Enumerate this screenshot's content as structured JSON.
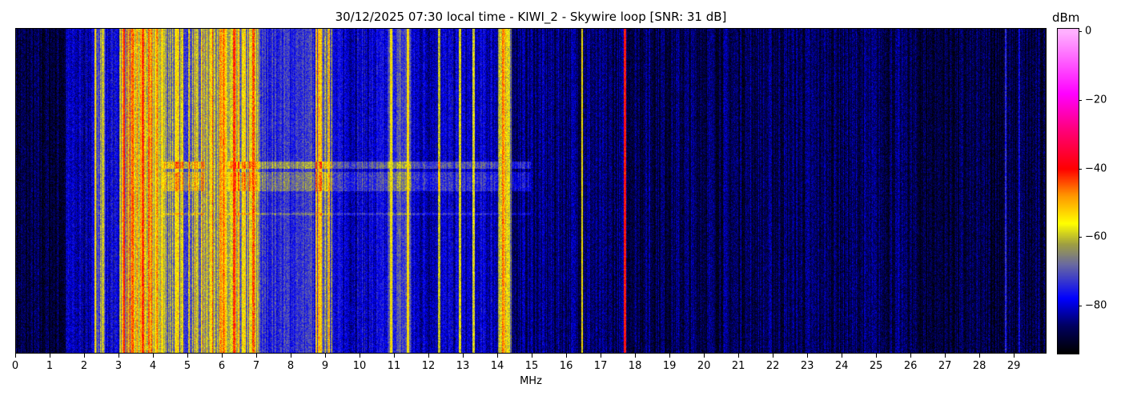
{
  "chart_data": {
    "type": "heatmap",
    "title": "30/12/2025 07:30 local time - KIWI_2 - Skywire loop [SNR: 31 dB]",
    "xlabel": "MHz",
    "ylabel": "",
    "xlim": [
      0,
      29.95
    ],
    "xticks": [
      "0",
      "1",
      "2",
      "3",
      "4",
      "5",
      "6",
      "7",
      "8",
      "9",
      "10",
      "11",
      "12",
      "13",
      "14",
      "15",
      "16",
      "17",
      "18",
      "19",
      "20",
      "21",
      "22",
      "23",
      "24",
      "25",
      "26",
      "27",
      "28",
      "29"
    ],
    "colorbar": {
      "label": "dBm",
      "range": [
        -94,
        1
      ],
      "ticks": [
        "0",
        "−20",
        "−40",
        "−60",
        "−80"
      ],
      "tick_values": [
        0,
        -20,
        -40,
        -60,
        -80
      ]
    },
    "colormap": [
      {
        "v": -94,
        "color": "#000000"
      },
      {
        "v": -86,
        "color": "#000060"
      },
      {
        "v": -78,
        "color": "#0000ff"
      },
      {
        "v": -68,
        "color": "#6a6aa0"
      },
      {
        "v": -62,
        "color": "#a0a040"
      },
      {
        "v": -56,
        "color": "#ffff00"
      },
      {
        "v": -48,
        "color": "#ff9900"
      },
      {
        "v": -40,
        "color": "#ff0000"
      },
      {
        "v": -28,
        "color": "#ff0080"
      },
      {
        "v": -18,
        "color": "#ff00ff"
      },
      {
        "v": 0,
        "color": "#ffb0ff"
      }
    ],
    "background_dbm": -89,
    "bands": [
      {
        "f": [
          1.45,
          2.3
        ],
        "dbm": -82
      },
      {
        "f": [
          2.3,
          2.6
        ],
        "dbm": -62
      },
      {
        "f": [
          2.6,
          3.0
        ],
        "dbm": -79
      },
      {
        "f": [
          3.0,
          4.3
        ],
        "dbm": -56
      },
      {
        "f": [
          4.3,
          5.5
        ],
        "dbm": -63
      },
      {
        "f": [
          5.5,
          6.15
        ],
        "dbm": -56
      },
      {
        "f": [
          6.15,
          7.1
        ],
        "dbm": -62
      },
      {
        "f": [
          7.1,
          8.7
        ],
        "dbm": -74
      },
      {
        "f": [
          8.7,
          9.2
        ],
        "dbm": -62
      },
      {
        "f": [
          9.2,
          10.8
        ],
        "dbm": -80
      },
      {
        "f": [
          10.8,
          11.5
        ],
        "dbm": -72
      },
      {
        "f": [
          11.5,
          14.0
        ],
        "dbm": -81
      },
      {
        "f": [
          14.0,
          14.4
        ],
        "dbm": -60
      },
      {
        "f": [
          14.4,
          16.8
        ],
        "dbm": -85
      },
      {
        "f": [
          16.8,
          19.0
        ],
        "dbm": -87
      }
    ],
    "lines": [
      {
        "f": 3.15,
        "dbm": -42
      },
      {
        "f": 3.7,
        "dbm": -44
      },
      {
        "f": 5.95,
        "dbm": -50
      },
      {
        "f": 6.35,
        "dbm": -44
      },
      {
        "f": 6.9,
        "dbm": -46
      },
      {
        "f": 8.8,
        "dbm": -52
      },
      {
        "f": 9.1,
        "dbm": -52
      },
      {
        "f": 10.9,
        "dbm": -58
      },
      {
        "f": 11.4,
        "dbm": -56
      },
      {
        "f": 12.3,
        "dbm": -62
      },
      {
        "f": 12.9,
        "dbm": -60
      },
      {
        "f": 13.3,
        "dbm": -60
      },
      {
        "f": 14.15,
        "dbm": -48
      },
      {
        "f": 14.3,
        "dbm": -60
      },
      {
        "f": 16.45,
        "dbm": -58
      },
      {
        "f": 17.7,
        "dbm": -42
      },
      {
        "f": 18.4,
        "dbm": -84
      },
      {
        "f": 28.75,
        "dbm": -76
      },
      {
        "f": 29.15,
        "dbm": -80
      }
    ]
  }
}
